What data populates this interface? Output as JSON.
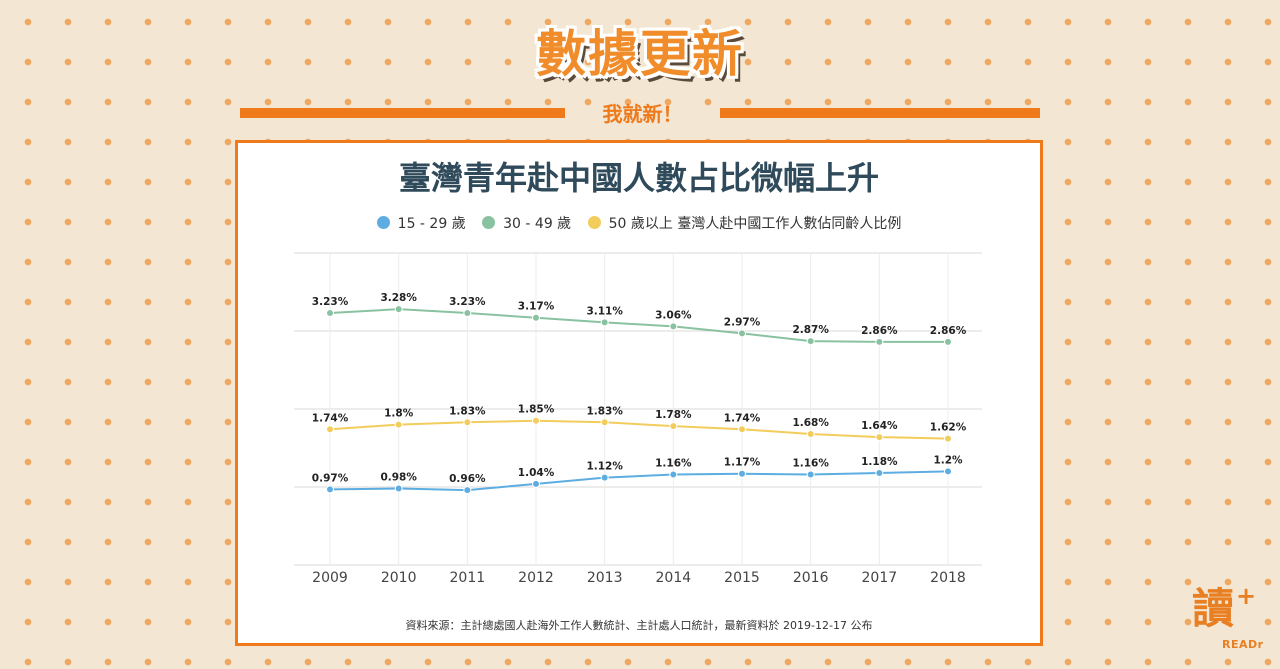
{
  "header": {
    "banner_title": "數據更新",
    "subtitle": "我就新！"
  },
  "legend": {
    "items": [
      {
        "label": "15 - 29 歲",
        "color": "#5dade2"
      },
      {
        "label": "30 - 49 歲",
        "color": "#89c2a0"
      },
      {
        "label": "50 歲以上",
        "color": "#f2cd5c"
      }
    ],
    "caption": "臺灣人赴中國工作人數佔同齡人比例"
  },
  "source": "資料來源：主計總處國人赴海外工作人數統計、主計處人口統計，最新資料於 2019-12-17 公布",
  "logo": {
    "char": "讀",
    "plus": "+",
    "text": "READr"
  },
  "chart_data": {
    "type": "line",
    "title": "臺灣青年赴中國人數占比微幅上升",
    "categories": [
      "2009",
      "2010",
      "2011",
      "2012",
      "2013",
      "2014",
      "2015",
      "2016",
      "2017",
      "2018"
    ],
    "series": [
      {
        "name": "15 - 29 歲",
        "color": "#5dade2",
        "values": [
          0.97,
          0.98,
          0.96,
          1.04,
          1.12,
          1.16,
          1.17,
          1.16,
          1.18,
          1.2
        ],
        "labels": [
          "0.97%",
          "0.98%",
          "0.96%",
          "1.04%",
          "1.12%",
          "1.16%",
          "1.17%",
          "1.16%",
          "1.18%",
          "1.2%"
        ]
      },
      {
        "name": "30 - 49 歲",
        "color": "#89c2a0",
        "values": [
          3.23,
          3.28,
          3.23,
          3.17,
          3.11,
          3.06,
          2.97,
          2.87,
          2.86,
          2.86
        ],
        "labels": [
          "3.23%",
          "3.28%",
          "3.23%",
          "3.17%",
          "3.11%",
          "3.06%",
          "2.97%",
          "2.87%",
          "2.86%",
          "2.86%"
        ]
      },
      {
        "name": "50 歲以上",
        "color": "#f2cd5c",
        "values": [
          1.74,
          1.8,
          1.83,
          1.85,
          1.83,
          1.78,
          1.74,
          1.68,
          1.64,
          1.62
        ],
        "labels": [
          "1.74%",
          "1.8%",
          "1.83%",
          "1.85%",
          "1.83%",
          "1.78%",
          "1.74%",
          "1.68%",
          "1.64%",
          "1.62%"
        ]
      }
    ],
    "ylim": [
      0,
      4
    ],
    "y_gridlines": [
      0,
      1,
      2,
      3,
      4
    ],
    "grid": true,
    "legend_position": "top"
  }
}
